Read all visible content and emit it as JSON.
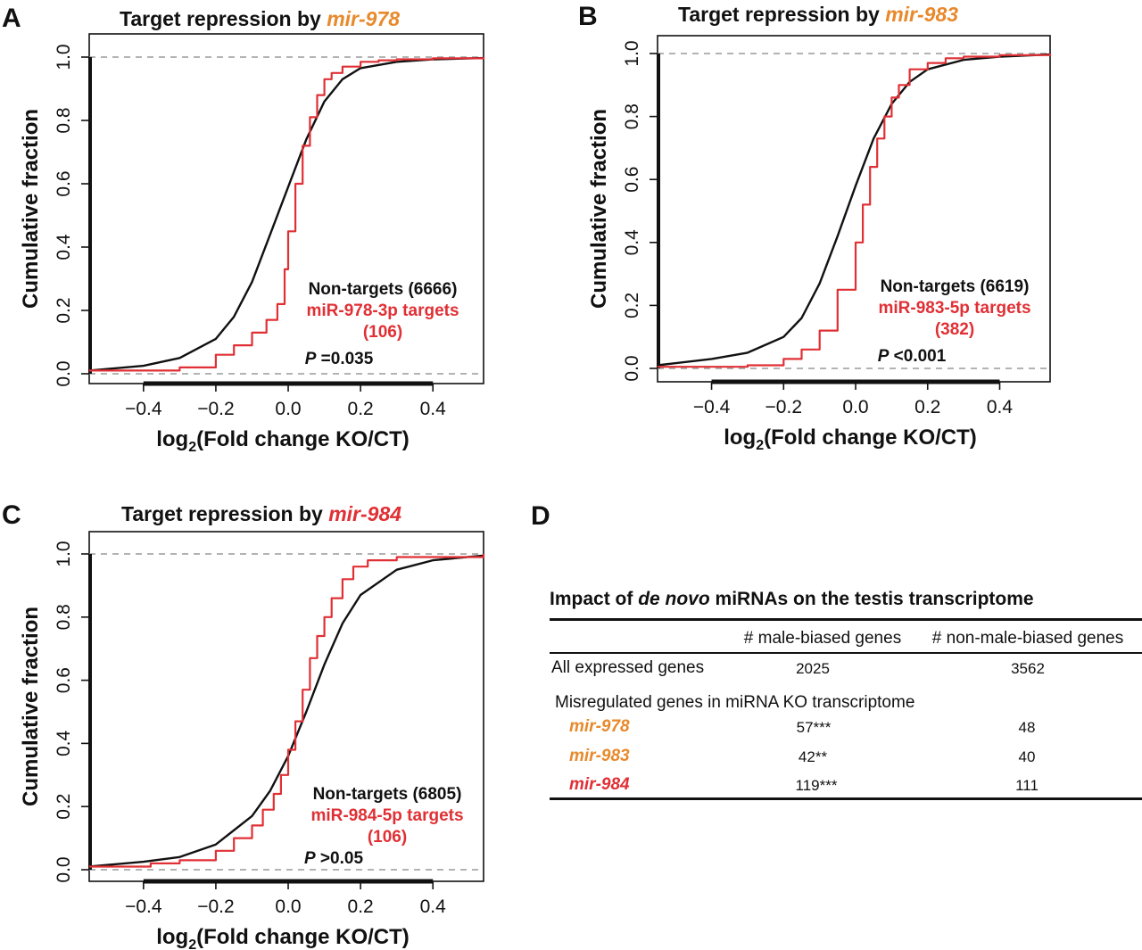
{
  "colors": {
    "orange": "#E8892B",
    "red": "#E03035",
    "black": "#111111",
    "gray_dash": "#9a9a9a"
  },
  "chart_data": [
    {
      "panel": "A",
      "type": "line",
      "title": "Target repression by ",
      "title_mir": "mir-978",
      "title_mir_color": "#E8892B",
      "xlabel_main": "log",
      "xlabel_sub": "2",
      "xlabel_rest": "(Fold change KO/CT)",
      "ylabel": "Cumulative fraction",
      "xlim": [
        -0.55,
        0.54
      ],
      "ylim": [
        0,
        1
      ],
      "xticks": [
        -0.4,
        -0.2,
        0.0,
        0.2,
        0.4
      ],
      "xtick_labels": [
        "−0.4",
        "−0.2",
        "0.0",
        "0.2",
        "0.4"
      ],
      "yticks": [
        0.0,
        0.2,
        0.4,
        0.6,
        0.8,
        1.0
      ],
      "ytick_labels": [
        "0.0",
        "0.2",
        "0.4",
        "0.6",
        "0.8",
        "1.0"
      ],
      "reference_lines": [
        0,
        1
      ],
      "series": [
        {
          "name": "Non-targets (6666)",
          "color": "#111111",
          "style": "smooth",
          "x": [
            -0.55,
            -0.4,
            -0.3,
            -0.2,
            -0.15,
            -0.1,
            -0.05,
            0.0,
            0.05,
            0.1,
            0.15,
            0.2,
            0.3,
            0.4,
            0.54
          ],
          "y": [
            0.01,
            0.025,
            0.05,
            0.11,
            0.18,
            0.29,
            0.44,
            0.59,
            0.74,
            0.86,
            0.93,
            0.965,
            0.985,
            0.993,
            0.997
          ]
        },
        {
          "name": "miR-978-3p targets (106)",
          "color": "#E03035",
          "style": "step",
          "x": [
            -0.55,
            -0.3,
            -0.2,
            -0.15,
            -0.1,
            -0.06,
            -0.03,
            -0.01,
            0.0,
            0.02,
            0.04,
            0.06,
            0.08,
            0.1,
            0.12,
            0.15,
            0.2,
            0.25,
            0.3,
            0.4,
            0.54
          ],
          "y": [
            0.01,
            0.02,
            0.06,
            0.09,
            0.13,
            0.17,
            0.22,
            0.33,
            0.45,
            0.6,
            0.72,
            0.81,
            0.88,
            0.93,
            0.95,
            0.97,
            0.985,
            0.99,
            0.993,
            0.996,
            1.0
          ]
        }
      ],
      "annotations": [
        {
          "text": "Non-targets (6666)",
          "color": "#111111"
        },
        {
          "text": "miR-978-3p targets",
          "color": "#E03035"
        },
        {
          "text": "(106)",
          "color": "#E03035"
        }
      ],
      "p_label": "P",
      "p_value": " =0.035"
    },
    {
      "panel": "B",
      "type": "line",
      "title": "Target repression by ",
      "title_mir": "mir-983",
      "title_mir_color": "#E8892B",
      "xlabel_main": "log",
      "xlabel_sub": "2",
      "xlabel_rest": "(Fold change KO/CT)",
      "ylabel": "Cumulative fraction",
      "xlim": [
        -0.55,
        0.54
      ],
      "ylim": [
        0,
        1
      ],
      "xticks": [
        -0.4,
        -0.2,
        0.0,
        0.2,
        0.4
      ],
      "xtick_labels": [
        "−0.4",
        "−0.2",
        "0.0",
        "0.2",
        "0.4"
      ],
      "yticks": [
        0.0,
        0.2,
        0.4,
        0.6,
        0.8,
        1.0
      ],
      "ytick_labels": [
        "0.0",
        "0.2",
        "0.4",
        "0.6",
        "0.8",
        "1.0"
      ],
      "reference_lines": [
        0,
        1
      ],
      "series": [
        {
          "name": "Non-targets (6619)",
          "color": "#111111",
          "style": "smooth",
          "x": [
            -0.55,
            -0.4,
            -0.3,
            -0.2,
            -0.15,
            -0.1,
            -0.05,
            0.0,
            0.05,
            0.1,
            0.15,
            0.2,
            0.3,
            0.4,
            0.54
          ],
          "y": [
            0.01,
            0.03,
            0.05,
            0.1,
            0.16,
            0.27,
            0.42,
            0.58,
            0.73,
            0.84,
            0.91,
            0.95,
            0.98,
            0.99,
            0.997
          ]
        },
        {
          "name": "miR-983-5p targets (382)",
          "color": "#E03035",
          "style": "step",
          "x": [
            -0.55,
            -0.3,
            -0.2,
            -0.15,
            -0.1,
            -0.05,
            0.0,
            0.02,
            0.04,
            0.06,
            0.08,
            0.1,
            0.12,
            0.15,
            0.2,
            0.25,
            0.3,
            0.4,
            0.54
          ],
          "y": [
            0.005,
            0.01,
            0.03,
            0.06,
            0.12,
            0.25,
            0.4,
            0.52,
            0.64,
            0.73,
            0.8,
            0.86,
            0.9,
            0.95,
            0.97,
            0.985,
            0.99,
            0.995,
            1.0
          ]
        }
      ],
      "annotations": [
        {
          "text": "Non-targets (6619)",
          "color": "#111111"
        },
        {
          "text": "miR-983-5p targets",
          "color": "#E03035"
        },
        {
          "text": "(382)",
          "color": "#E03035"
        }
      ],
      "p_label": "P",
      "p_value": " <0.001"
    },
    {
      "panel": "C",
      "type": "line",
      "title": "Target repression by ",
      "title_mir": "mir-984",
      "title_mir_color": "#E03035",
      "xlabel_main": "log",
      "xlabel_sub": "2",
      "xlabel_rest": "(Fold change KO/CT)",
      "ylabel": "Cumulative fraction",
      "xlim": [
        -0.55,
        0.54
      ],
      "ylim": [
        0,
        1
      ],
      "xticks": [
        -0.4,
        -0.2,
        0.0,
        0.2,
        0.4
      ],
      "xtick_labels": [
        "−0.4",
        "−0.2",
        "0.0",
        "0.2",
        "0.4"
      ],
      "yticks": [
        0.0,
        0.2,
        0.4,
        0.6,
        0.8,
        1.0
      ],
      "ytick_labels": [
        "0.0",
        "0.2",
        "0.4",
        "0.6",
        "0.8",
        "1.0"
      ],
      "reference_lines": [
        0,
        1
      ],
      "series": [
        {
          "name": "Non-targets (6805)",
          "color": "#111111",
          "style": "smooth",
          "x": [
            -0.55,
            -0.4,
            -0.3,
            -0.2,
            -0.1,
            -0.05,
            0.0,
            0.05,
            0.1,
            0.15,
            0.2,
            0.3,
            0.4,
            0.54
          ],
          "y": [
            0.01,
            0.025,
            0.04,
            0.08,
            0.17,
            0.25,
            0.36,
            0.5,
            0.65,
            0.78,
            0.87,
            0.95,
            0.98,
            0.995
          ]
        },
        {
          "name": "miR-984-5p targets (106)",
          "color": "#E03035",
          "style": "step",
          "x": [
            -0.55,
            -0.38,
            -0.3,
            -0.2,
            -0.15,
            -0.1,
            -0.07,
            -0.04,
            -0.02,
            0.0,
            0.02,
            0.04,
            0.06,
            0.08,
            0.1,
            0.12,
            0.15,
            0.18,
            0.22,
            0.3,
            0.54
          ],
          "y": [
            0.01,
            0.02,
            0.03,
            0.06,
            0.1,
            0.14,
            0.19,
            0.24,
            0.3,
            0.38,
            0.47,
            0.57,
            0.67,
            0.74,
            0.8,
            0.86,
            0.92,
            0.96,
            0.98,
            0.99,
            1.0
          ]
        }
      ],
      "annotations": [
        {
          "text": "Non-targets (6805)",
          "color": "#111111"
        },
        {
          "text": "miR-984-5p targets",
          "color": "#E03035"
        },
        {
          "text": "(106)",
          "color": "#E03035"
        }
      ],
      "p_label": "P",
      "p_value": " >0.05"
    }
  ],
  "panel_letters": {
    "a": "A",
    "b": "B",
    "c": "C",
    "d": "D"
  },
  "table": {
    "title_pre": "Impact of ",
    "title_it": "de novo",
    "title_post": " miRNAs on the testis transcriptome",
    "col1": "# male-biased genes",
    "col2": "# non-male-biased genes",
    "all_label": "All expressed genes",
    "all_v1": "2025",
    "all_v2": "3562",
    "misreg_label": "Misregulated genes in miRNA KO transcriptome",
    "rows": [
      {
        "name": "mir-978",
        "color": "#E8892B",
        "v1": "57***",
        "v2": "48"
      },
      {
        "name": "mir-983",
        "color": "#E8892B",
        "v1": "42**",
        "v2": "40"
      },
      {
        "name": "mir-984",
        "color": "#E03035",
        "v1": "119***",
        "v2": "111"
      }
    ]
  }
}
